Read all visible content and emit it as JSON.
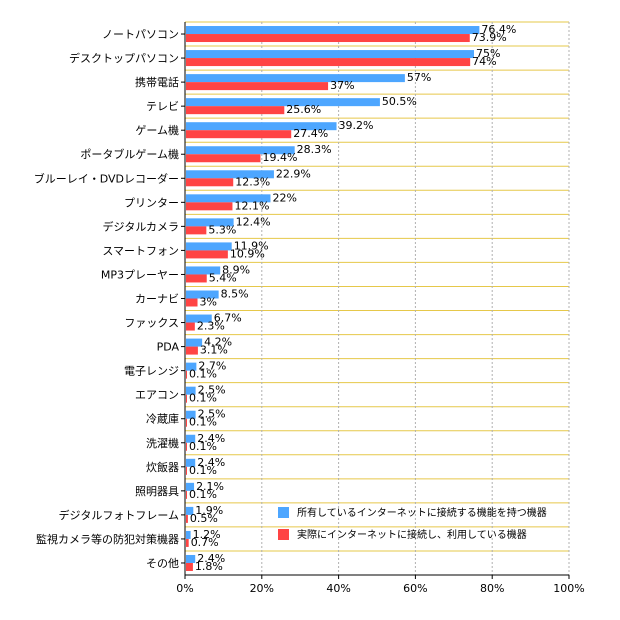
{
  "chart_data": {
    "type": "bar",
    "orientation": "horizontal",
    "categories": [
      "ノートパソコン",
      "デスクトップパソコン",
      "携帯電話",
      "テレビ",
      "ゲーム機",
      "ポータブルゲーム機",
      "ブルーレイ・DVDレコーダー",
      "プリンター",
      "デジタルカメラ",
      "スマートフォン",
      "MP3プレーヤー",
      "カーナビ",
      "ファックス",
      "PDA",
      "電子レンジ",
      "エアコン",
      "冷蔵庫",
      "洗濯機",
      "炊飯器",
      "照明器具",
      "デジタルフォトフレーム",
      "監視カメラ等の防犯対策機器",
      "その他"
    ],
    "series": [
      {
        "name": "所有しているインターネットに接続する機能を持つ機器",
        "color": "#4da6ff",
        "values": [
          76.4,
          75,
          57,
          50.5,
          39.2,
          28.3,
          22.9,
          22,
          12.4,
          11.9,
          8.9,
          8.5,
          6.7,
          4.2,
          2.7,
          2.5,
          2.5,
          2.4,
          2.4,
          2.1,
          1.9,
          1.2,
          2.4
        ],
        "labels": [
          "76.4%",
          "75%",
          "57%",
          "50.5%",
          "39.2%",
          "28.3%",
          "22.9%",
          "22%",
          "12.4%",
          "11.9%",
          "8.9%",
          "8.5%",
          "6.7%",
          "4.2%",
          "2.7%",
          "2.5%",
          "2.5%",
          "2.4%",
          "2.4%",
          "2.1%",
          "1.9%",
          "1.2%",
          "2.4%"
        ]
      },
      {
        "name": "実際にインターネットに接続し、利用している機器",
        "color": "#ff4444",
        "values": [
          73.9,
          74,
          37,
          25.6,
          27.4,
          19.4,
          12.3,
          12.1,
          5.3,
          10.9,
          5.4,
          3,
          2.3,
          3.1,
          0.1,
          0.1,
          0.1,
          0.1,
          0.1,
          0.1,
          0.5,
          0.7,
          1.8
        ],
        "labels": [
          "73.9%",
          "74%",
          "37%",
          "25.6%",
          "27.4%",
          "19.4%",
          "12.3%",
          "12.1%",
          "5.3%",
          "10.9%",
          "5.4%",
          "3%",
          "2.3%",
          "3.1%",
          "0.1%",
          "0.1%",
          "0.1%",
          "0.1%",
          "0.1%",
          "0.1%",
          "0.5%",
          "0.7%",
          "1.8%"
        ]
      }
    ],
    "xlim": [
      0,
      100
    ],
    "xticks": [
      "0%",
      "20%",
      "40%",
      "60%",
      "80%",
      "100%"
    ],
    "grid": true,
    "legend_position": "bottom-right",
    "title": "",
    "xlabel": "",
    "ylabel": ""
  }
}
